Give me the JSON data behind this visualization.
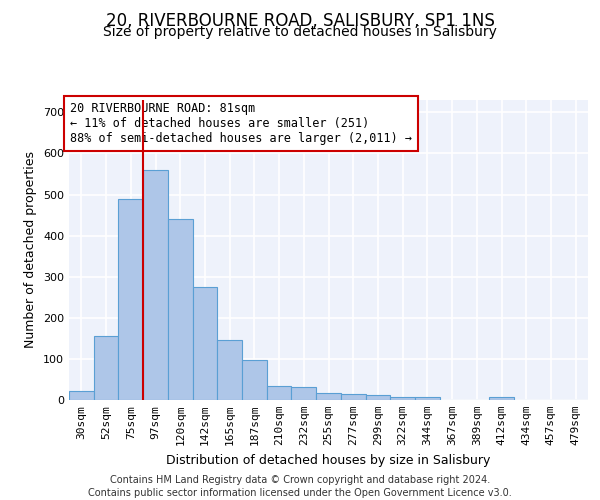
{
  "title1": "20, RIVERBOURNE ROAD, SALISBURY, SP1 1NS",
  "title2": "Size of property relative to detached houses in Salisbury",
  "xlabel": "Distribution of detached houses by size in Salisbury",
  "ylabel": "Number of detached properties",
  "bin_labels": [
    "30sqm",
    "52sqm",
    "75sqm",
    "97sqm",
    "120sqm",
    "142sqm",
    "165sqm",
    "187sqm",
    "210sqm",
    "232sqm",
    "255sqm",
    "277sqm",
    "299sqm",
    "322sqm",
    "344sqm",
    "367sqm",
    "389sqm",
    "412sqm",
    "434sqm",
    "457sqm",
    "479sqm"
  ],
  "bar_heights": [
    22,
    155,
    490,
    560,
    440,
    275,
    145,
    97,
    35,
    32,
    16,
    15,
    12,
    7,
    7,
    0,
    0,
    7,
    0,
    0,
    0
  ],
  "bar_color": "#aec6e8",
  "bar_edge_color": "#5a9fd4",
  "vline_x_pos": 2.5,
  "vline_color": "#cc0000",
  "annotation_text": "20 RIVERBOURNE ROAD: 81sqm\n← 11% of detached houses are smaller (251)\n88% of semi-detached houses are larger (2,011) →",
  "annotation_box_color": "#cc0000",
  "ylim": [
    0,
    730
  ],
  "yticks": [
    0,
    100,
    200,
    300,
    400,
    500,
    600,
    700
  ],
  "footer1": "Contains HM Land Registry data © Crown copyright and database right 2024.",
  "footer2": "Contains public sector information licensed under the Open Government Licence v3.0.",
  "bg_color": "#eef2fb",
  "grid_color": "#ffffff",
  "title1_fontsize": 12,
  "title2_fontsize": 10,
  "axis_label_fontsize": 9,
  "tick_fontsize": 8,
  "annotation_fontsize": 8.5,
  "footer_fontsize": 7
}
